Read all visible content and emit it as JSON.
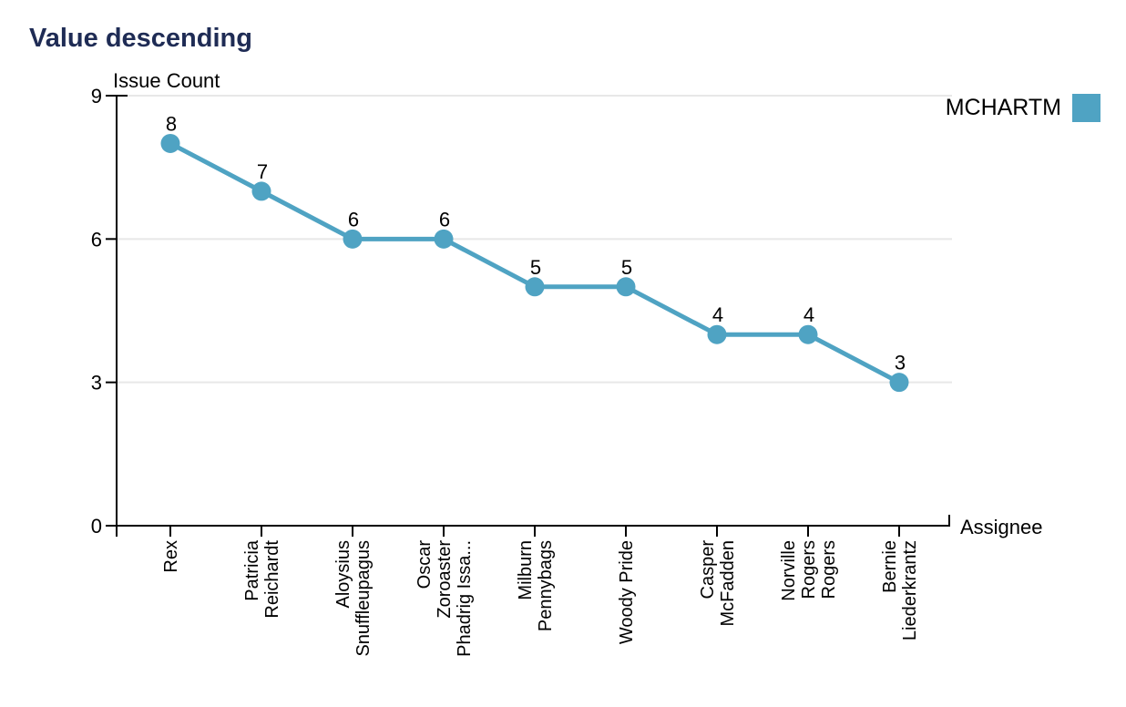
{
  "title": "Value descending",
  "legend": {
    "series_label": "MCHARTM"
  },
  "chart_data": {
    "type": "line",
    "title": "Value descending",
    "xlabel": "Assignee",
    "ylabel": "Issue Count",
    "categories": [
      "Rex",
      "Patricia Reichardt",
      "Aloysius Snuffleupagus",
      "Oscar Zoroaster Phadrig Issa...",
      "Milburn Pennybags",
      "Woody Pride",
      "Casper McFadden",
      "Norville Rogers Rogers",
      "Bernie Liederkrantz"
    ],
    "category_lines": [
      [
        "Rex"
      ],
      [
        "Patricia",
        "Reichardt"
      ],
      [
        "Aloysius",
        "Snuffleupagus"
      ],
      [
        "Oscar",
        "Zoroaster",
        "Phadrig Issa..."
      ],
      [
        "Milburn",
        "Pennybags"
      ],
      [
        "Woody Pride"
      ],
      [
        "Casper",
        "McFadden"
      ],
      [
        "Norville",
        "Rogers",
        "Rogers"
      ],
      [
        "Bernie",
        "Liederkrantz"
      ]
    ],
    "series": [
      {
        "name": "MCHARTM",
        "values": [
          8,
          7,
          6,
          6,
          5,
          5,
          4,
          4,
          3
        ]
      }
    ],
    "data_labels": [
      8,
      7,
      6,
      6,
      5,
      5,
      4,
      4,
      3
    ],
    "y_ticks": [
      0,
      3,
      6,
      9
    ],
    "ylim": [
      0,
      9
    ],
    "grid": true,
    "legend_position": "top-right"
  },
  "colors": {
    "accent": "#4fa3c3",
    "title": "#1f2c55",
    "grid": "#e8e8e8",
    "axis": "#000000",
    "label": "#000000"
  }
}
